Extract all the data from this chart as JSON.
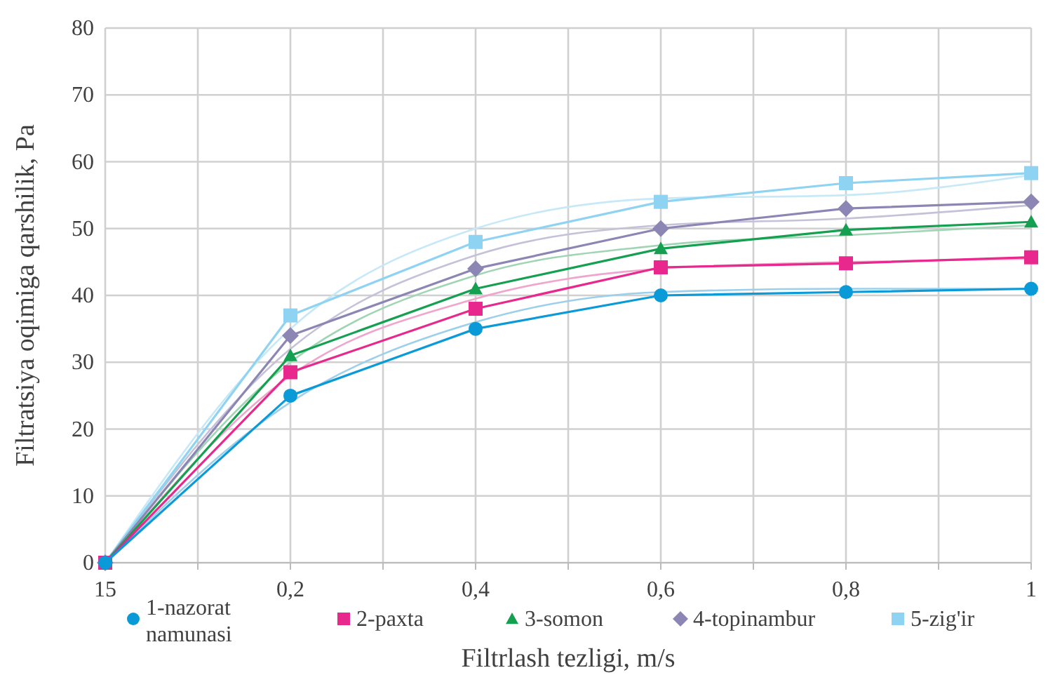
{
  "chart_data": {
    "type": "line",
    "xlabel": "Filtrlash tezligi, m/s",
    "ylabel": "Filtratsiya oqimiga qarshilik, Pa",
    "categories": [
      "15",
      "0,2",
      "0,4",
      "0,6",
      "0,8",
      "1"
    ],
    "ylim": [
      0,
      80
    ],
    "yticks": [
      0,
      10,
      20,
      30,
      40,
      50,
      60,
      70,
      80
    ],
    "grid": true,
    "legend": "bottom",
    "line_style": "solid",
    "series": [
      {
        "name": "1-nazorat namunasi",
        "color": "#0a9ad8",
        "marker": "circle",
        "values": [
          0,
          25,
          35,
          40,
          40.5,
          41
        ]
      },
      {
        "name": "2-paxta",
        "color": "#e8288c",
        "marker": "square",
        "values": [
          0,
          28.5,
          38,
          44.2,
          44.8,
          45.7
        ]
      },
      {
        "name": "3-somon",
        "color": "#14a050",
        "marker": "triangle",
        "values": [
          0,
          31,
          41,
          47,
          49.8,
          51
        ]
      },
      {
        "name": "4-topinambur",
        "color": "#8c86b4",
        "marker": "diamond",
        "values": [
          0,
          34,
          44,
          50,
          53,
          54
        ]
      },
      {
        "name": "5-zig'ir",
        "color": "#8fd3f2",
        "marker": "square",
        "values": [
          0,
          37,
          48,
          54,
          56.8,
          58.3
        ]
      },
      {
        "type": "line",
        "color": "#9ccfea",
        "marker": "none",
        "values": [
          0,
          24,
          36,
          40.5,
          41,
          41
        ]
      },
      {
        "type": "line",
        "color": "#f0a6cc",
        "marker": "none",
        "values": [
          0,
          28,
          39.5,
          44,
          45,
          45.5
        ]
      },
      {
        "type": "line",
        "color": "#9fd4b4",
        "marker": "none",
        "values": [
          0,
          30,
          43,
          47.5,
          49,
          50.5
        ]
      },
      {
        "type": "line",
        "color": "#c4c1d8",
        "marker": "none",
        "values": [
          0,
          32,
          46,
          50.5,
          51.5,
          53.5
        ]
      },
      {
        "type": "line",
        "color": "#c6e8f7",
        "marker": "none",
        "values": [
          0,
          35,
          50,
          54.5,
          55,
          58
        ]
      }
    ]
  }
}
